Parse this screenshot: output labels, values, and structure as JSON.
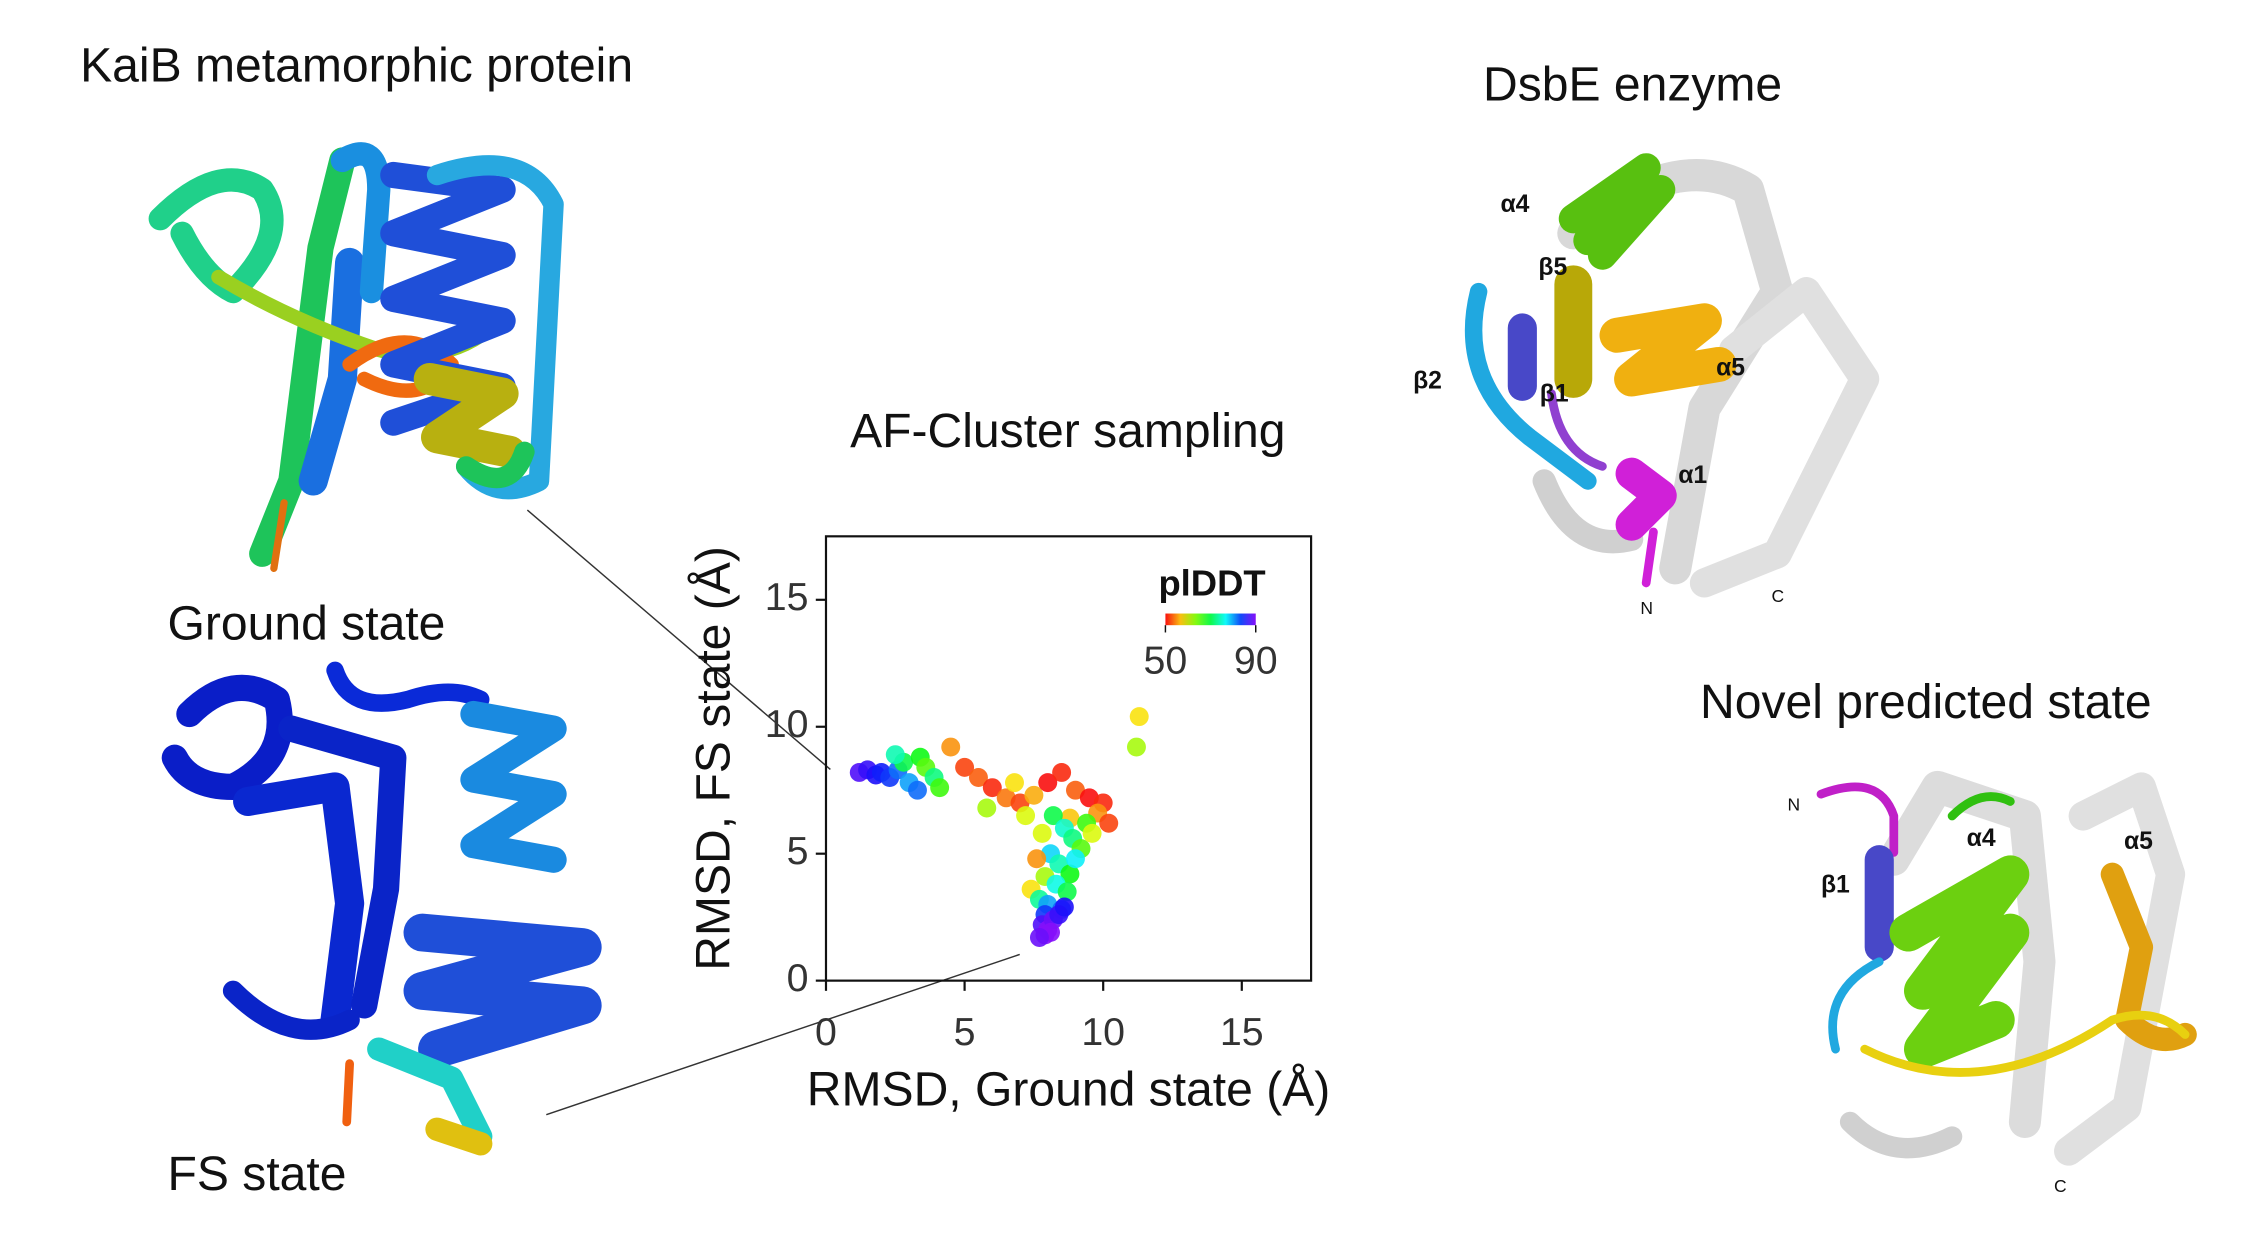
{
  "chart_data": {
    "type": "scatter",
    "title": "AF-Cluster sampling",
    "x_label": "RMSD, Ground state (Å)",
    "y_label": "RMSD, FS state (Å)",
    "xlim": [
      0,
      17.5
    ],
    "ylim": [
      0,
      17.5
    ],
    "xticks": [
      0,
      5,
      10,
      15
    ],
    "yticks": [
      0,
      5,
      10,
      15
    ],
    "colorbar": {
      "label": "plDDT",
      "range": [
        50,
        90
      ],
      "ticks": [
        50,
        90
      ]
    },
    "x": [
      1.2,
      1.5,
      1.8,
      2.0,
      2.3,
      2.6,
      3.0,
      3.3,
      2.8,
      3.4,
      3.6,
      3.9,
      4.1,
      2.5,
      4.5,
      5.0,
      5.5,
      6.0,
      6.5,
      7.0,
      7.5,
      8.0,
      8.5,
      9.0,
      9.5,
      10.0,
      7.2,
      6.8,
      5.8,
      8.8,
      9.8,
      10.2,
      11.3,
      11.2,
      8.2,
      8.6,
      8.9,
      9.2,
      7.8,
      8.1,
      8.4,
      8.8,
      7.6,
      7.9,
      8.3,
      8.7,
      7.4,
      7.7,
      8.0,
      8.5,
      9.0,
      9.4,
      9.6,
      7.9,
      7.8,
      8.0,
      8.2,
      7.9,
      8.1,
      8.4,
      8.6,
      7.7
    ],
    "y": [
      8.2,
      8.3,
      8.1,
      8.2,
      8.0,
      8.3,
      7.8,
      7.5,
      8.6,
      8.8,
      8.4,
      8.0,
      7.6,
      8.9,
      9.2,
      8.4,
      8.0,
      7.6,
      7.2,
      7.0,
      7.3,
      7.8,
      8.2,
      7.5,
      7.2,
      7.0,
      6.5,
      7.8,
      6.8,
      6.4,
      6.6,
      6.2,
      10.4,
      9.2,
      6.5,
      6.0,
      5.6,
      5.2,
      5.8,
      5.0,
      4.6,
      4.2,
      4.8,
      4.1,
      3.8,
      3.5,
      3.6,
      3.2,
      3.0,
      2.8,
      4.8,
      6.2,
      5.8,
      2.6,
      2.2,
      2.0,
      2.4,
      1.8,
      1.9,
      2.6,
      2.9,
      1.7
    ],
    "plddt": [
      88,
      87,
      86,
      85,
      84,
      82,
      80,
      82,
      70,
      68,
      65,
      72,
      66,
      74,
      55,
      52,
      53,
      51,
      54,
      52,
      56,
      50,
      51,
      53,
      50,
      51,
      60,
      58,
      62,
      57,
      55,
      52,
      58,
      62,
      70,
      75,
      72,
      65,
      60,
      78,
      74,
      68,
      55,
      62,
      76,
      70,
      58,
      73,
      80,
      82,
      77,
      66,
      60,
      84,
      88,
      90,
      89,
      90,
      90,
      87,
      86,
      89
    ]
  },
  "panels": {
    "kaib": "KaiB metamorphic protein",
    "ground": "Ground state",
    "fs": "FS state",
    "dsbe": "DsbE enzyme",
    "novel": "Novel predicted state"
  },
  "dsbe_labels": [
    "α4",
    "β5",
    "β2",
    "β1",
    "α5",
    "α1",
    "N",
    "C"
  ],
  "novel_labels": [
    "N",
    "α4",
    "α5",
    "β1",
    "C"
  ]
}
